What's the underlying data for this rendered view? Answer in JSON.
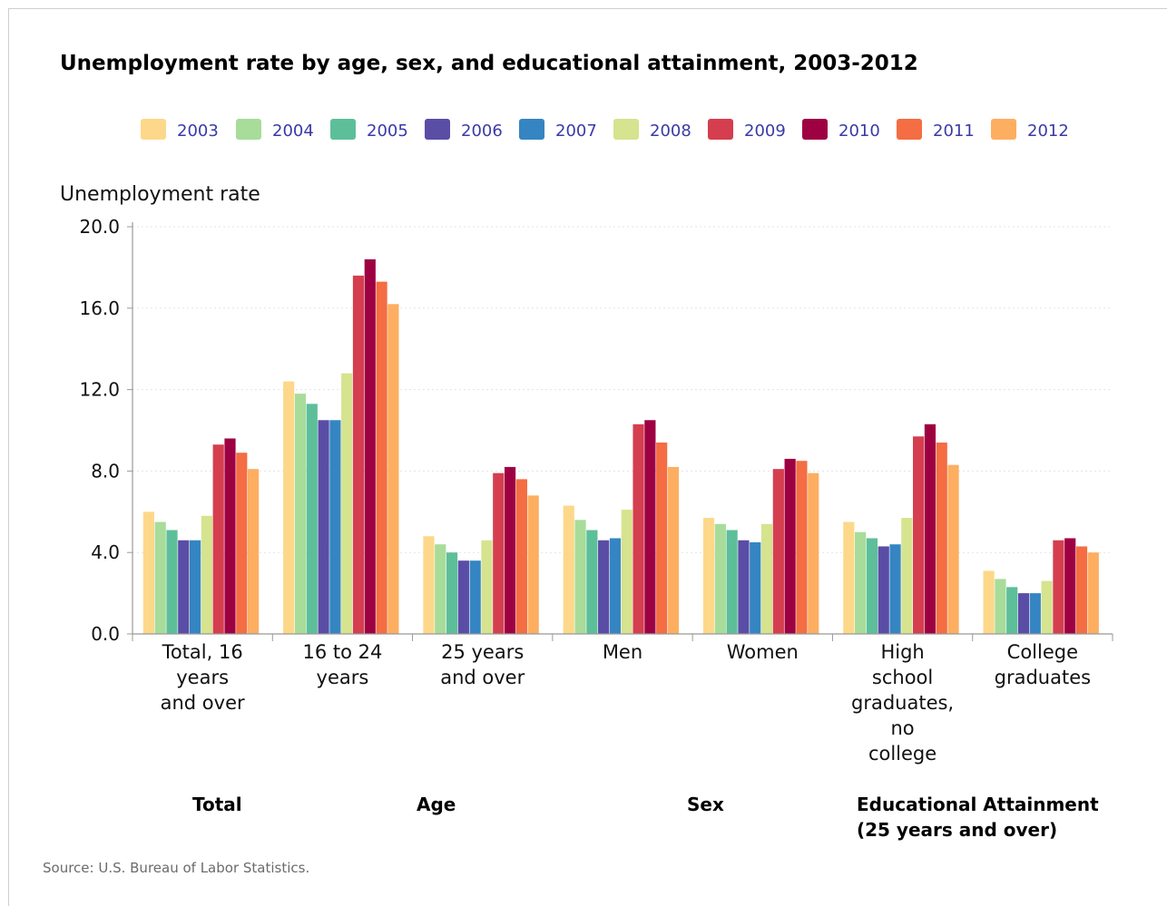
{
  "chart_data": {
    "type": "bar",
    "title": "Unemployment rate by age, sex, and educational attainment, 2003-2012",
    "ylabel": "Unemployment rate",
    "ylim": [
      0,
      20
    ],
    "yticks": [
      "0.0",
      "4.0",
      "8.0",
      "12.0",
      "16.0",
      "20.0"
    ],
    "grid": "horizontal dotted",
    "legend_position": "top",
    "categories": [
      [
        "Total, 16",
        "years",
        "and over"
      ],
      [
        "16 to 24",
        "years"
      ],
      [
        "25 years",
        "and over"
      ],
      [
        "Men"
      ],
      [
        "Women"
      ],
      [
        "High",
        "school",
        "graduates,",
        "no",
        "college"
      ],
      [
        "College",
        "graduates"
      ]
    ],
    "groups": [
      {
        "label": [
          "Total"
        ],
        "categories": [
          0
        ]
      },
      {
        "label": [
          "Age"
        ],
        "categories": [
          1,
          2
        ]
      },
      {
        "label": [
          "Sex"
        ],
        "categories": [
          3,
          4
        ]
      },
      {
        "label": [
          "Educational Attainment",
          "(25 years and over)"
        ],
        "categories": [
          5,
          6
        ]
      }
    ],
    "series": [
      {
        "name": "2003",
        "color": "#fdd88a",
        "values": [
          6.0,
          12.4,
          4.8,
          6.3,
          5.7,
          5.5,
          3.1
        ]
      },
      {
        "name": "2004",
        "color": "#a8dc9a",
        "values": [
          5.5,
          11.8,
          4.4,
          5.6,
          5.4,
          5.0,
          2.7
        ]
      },
      {
        "name": "2005",
        "color": "#5dbf9a",
        "values": [
          5.1,
          11.3,
          4.0,
          5.1,
          5.1,
          4.7,
          2.3
        ]
      },
      {
        "name": "2006",
        "color": "#5a4da6",
        "values": [
          4.6,
          10.5,
          3.6,
          4.6,
          4.6,
          4.3,
          2.0
        ]
      },
      {
        "name": "2007",
        "color": "#3585c2",
        "values": [
          4.6,
          10.5,
          3.6,
          4.7,
          4.5,
          4.4,
          2.0
        ]
      },
      {
        "name": "2008",
        "color": "#d6e38f",
        "values": [
          5.8,
          12.8,
          4.6,
          6.1,
          5.4,
          5.7,
          2.6
        ]
      },
      {
        "name": "2009",
        "color": "#d53e4f",
        "values": [
          9.3,
          17.6,
          7.9,
          10.3,
          8.1,
          9.7,
          4.6
        ]
      },
      {
        "name": "2010",
        "color": "#9e0142",
        "values": [
          9.6,
          18.4,
          8.2,
          10.5,
          8.6,
          10.3,
          4.7
        ]
      },
      {
        "name": "2011",
        "color": "#f46d43",
        "values": [
          8.9,
          17.3,
          7.6,
          9.4,
          8.5,
          9.4,
          4.3
        ]
      },
      {
        "name": "2012",
        "color": "#fdae61",
        "values": [
          8.1,
          16.2,
          6.8,
          8.2,
          7.9,
          8.3,
          4.0
        ]
      }
    ],
    "source": "Source: U.S. Bureau of Labor Statistics."
  }
}
